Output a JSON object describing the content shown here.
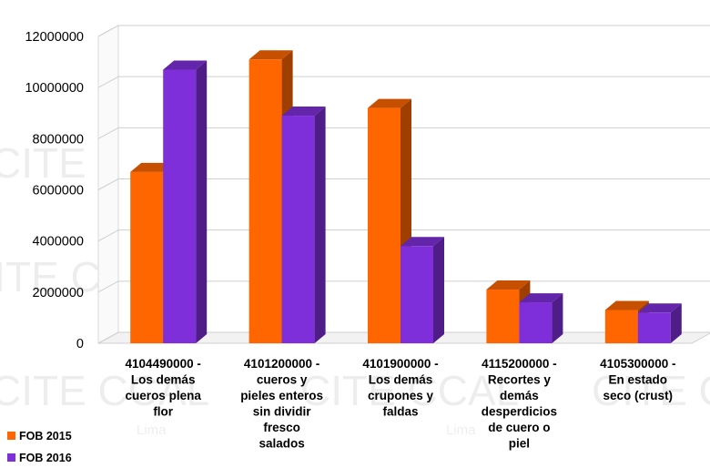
{
  "chart_data": {
    "type": "bar",
    "title": "",
    "xlabel": "",
    "ylabel": "",
    "ylim": [
      0,
      12000000
    ],
    "yticks": [
      0,
      2000000,
      4000000,
      6000000,
      8000000,
      10000000,
      12000000
    ],
    "ytick_labels": [
      "0",
      "2000000",
      "4000000",
      "6000000",
      "8000000",
      "10000000",
      "12000000"
    ],
    "grid": true,
    "style": "3d-clustered-column",
    "legend_position": "bottom-left",
    "categories": [
      [
        "4104490000 -",
        "Los demás",
        "cueros plena",
        "flor"
      ],
      [
        "4101200000 -",
        "cueros y",
        "pieles enteros",
        "sin dividir",
        "fresco",
        "salados"
      ],
      [
        "4101900000 -",
        "Los demás",
        "crupones y",
        "faldas"
      ],
      [
        "4115200000 -",
        "Recortes y",
        "demás",
        "desperdicios",
        "de cuero o",
        "piel"
      ],
      [
        "4105300000 -",
        "En estado",
        "seco (crust)"
      ]
    ],
    "series": [
      {
        "name": "FOB 2015",
        "color": "#FF6600",
        "values": [
          6700000,
          11100000,
          9200000,
          2100000,
          1300000
        ]
      },
      {
        "name": "FOB 2016",
        "color": "#7F2FD9",
        "values": [
          10700000,
          8900000,
          3800000,
          1600000,
          1200000
        ]
      }
    ]
  },
  "watermark": {
    "main": "CITE CCAL",
    "sub": "Lima"
  }
}
